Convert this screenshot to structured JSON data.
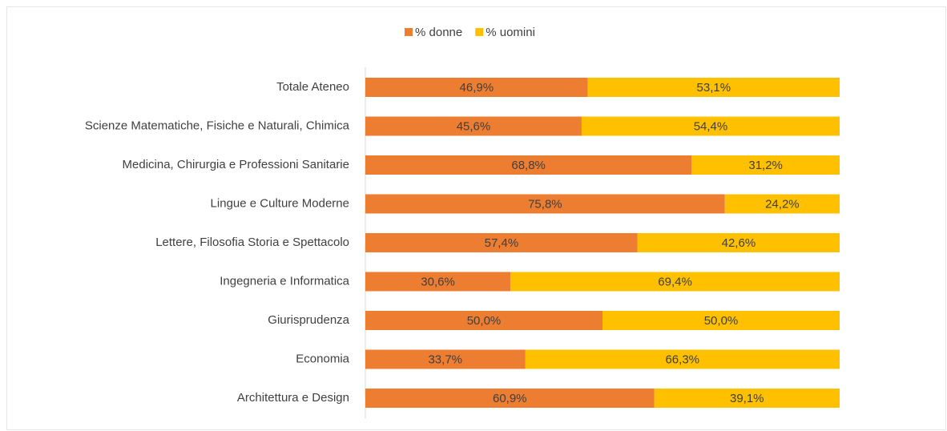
{
  "chart_data": {
    "type": "stacked_bar_horizontal",
    "categories": [
      "Totale Ateneo",
      "Scienze Matematiche, Fisiche e Naturali, Chimica",
      "Medicina, Chirurgia e Professioni Sanitarie",
      "Lingue e Culture Moderne",
      "Lettere, Filosofia Storia e Spettacolo",
      "Ingegneria e Informatica",
      "Giurisprudenza",
      "Economia",
      "Architettura e Design"
    ],
    "series": [
      {
        "name": "% donne",
        "color": "#ed7d31",
        "values": [
          46.9,
          45.6,
          68.8,
          75.8,
          57.4,
          30.6,
          50.0,
          33.7,
          60.9
        ],
        "value_labels": [
          "46,9%",
          "45,6%",
          "68,8%",
          "75,8%",
          "57,4%",
          "30,6%",
          "50,0%",
          "33,7%",
          "60,9%"
        ]
      },
      {
        "name": "% uomini",
        "color": "#ffc000",
        "values": [
          53.1,
          54.4,
          31.2,
          24.2,
          42.6,
          69.4,
          50.0,
          66.3,
          39.1
        ],
        "value_labels": [
          "53,1%",
          "54,4%",
          "31,2%",
          "24,2%",
          "42,6%",
          "69,4%",
          "50,0%",
          "66,3%",
          "39,1%"
        ]
      }
    ],
    "xlim": [
      0,
      100
    ],
    "legend": "top"
  }
}
